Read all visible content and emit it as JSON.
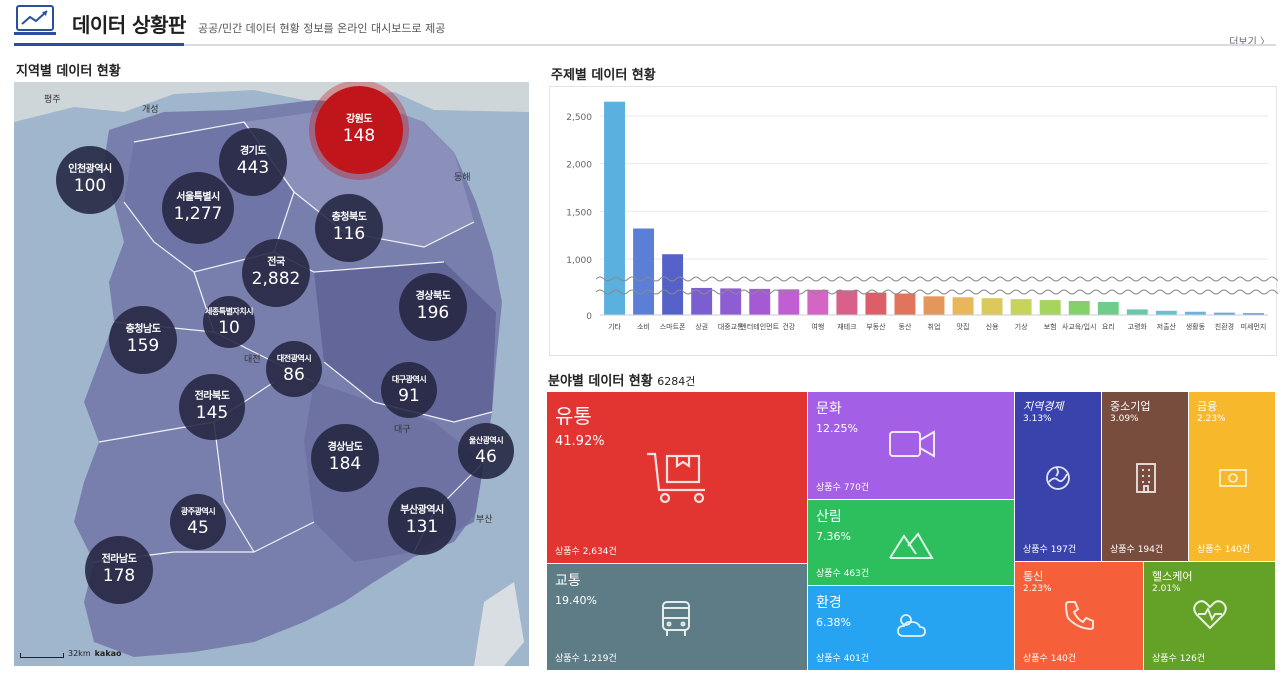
{
  "header": {
    "title": "데이터 상황판",
    "subtitle": "공공/민간 데이터 현황 정보를 온라인 대시보드로 제공",
    "more_label": "더보기 〉",
    "logo_icon": "trend-chart-icon"
  },
  "regional": {
    "title": "지역별 데이터 현황",
    "regions": [
      {
        "name": "강원도",
        "count": "148",
        "highlight": true
      },
      {
        "name": "경기도",
        "count": "443"
      },
      {
        "name": "인천광역시",
        "count": "100"
      },
      {
        "name": "서울특별시",
        "count": "1,277"
      },
      {
        "name": "충청북도",
        "count": "116"
      },
      {
        "name": "전국",
        "count": "2,882"
      },
      {
        "name": "경상북도",
        "count": "196"
      },
      {
        "name": "세종특별자치시",
        "count": "10"
      },
      {
        "name": "충청남도",
        "count": "159"
      },
      {
        "name": "대전광역시",
        "count": "86"
      },
      {
        "name": "대구광역시",
        "count": "91"
      },
      {
        "name": "전라북도",
        "count": "145"
      },
      {
        "name": "울산광역시",
        "count": "46"
      },
      {
        "name": "경상남도",
        "count": "184"
      },
      {
        "name": "광주광역시",
        "count": "45"
      },
      {
        "name": "부산광역시",
        "count": "131"
      },
      {
        "name": "전라남도",
        "count": "178"
      }
    ],
    "map_labels": [
      "개성",
      "평주",
      "동해",
      "대전",
      "대구",
      "부산"
    ],
    "scale_label": "32km",
    "map_provider": "kakao"
  },
  "subject": {
    "title": "주제별 데이터 현황",
    "chart_data": {
      "type": "bar",
      "categories": [
        "기타",
        "소비",
        "스마트폰",
        "상권",
        "대중교통",
        "엔터테인먼트",
        "건강",
        "여행",
        "재테크",
        "부동산",
        "동산",
        "취업",
        "맛집",
        "신용",
        "기상",
        "보험",
        "사교육/입시",
        "요리",
        "고령화",
        "저출산",
        "생활동",
        "친환경",
        "미세먼지"
      ],
      "values": [
        2650,
        1320,
        1050,
        290,
        285,
        280,
        275,
        270,
        265,
        240,
        230,
        200,
        190,
        180,
        170,
        160,
        150,
        140,
        60,
        45,
        35,
        25,
        20
      ],
      "colors": [
        "#5ab0de",
        "#5b7fd6",
        "#5560c9",
        "#7b5fd0",
        "#8e5dd3",
        "#a45ad4",
        "#c25ed3",
        "#d565c4",
        "#d8608a",
        "#dc5e69",
        "#e0755c",
        "#e3975a",
        "#e8b75b",
        "#dcc95c",
        "#c8d35c",
        "#a6d45e",
        "#84d16b",
        "#70cc8a",
        "#6cc6ad",
        "#6cbfcc",
        "#6cb4dc",
        "#6ca6dc",
        "#6c9ad8"
      ],
      "yticks": [
        "0",
        "1,000",
        "1,500",
        "2,000",
        "2,500"
      ],
      "xlabel": "",
      "ylabel": "",
      "axis_break": true
    }
  },
  "field": {
    "title": "분야별 데이터 현황",
    "total": "6284건",
    "tiles": [
      {
        "name": "유통",
        "pct": "41.92%",
        "count": "상품수 2,634건",
        "color": "#e23532",
        "icon": "cart-box-icon"
      },
      {
        "name": "교통",
        "pct": "19.40%",
        "count": "상품수 1,219건",
        "color": "#5d7c85",
        "icon": "bus-icon"
      },
      {
        "name": "문화",
        "pct": "12.25%",
        "count": "상품수 770건",
        "color": "#a35fe6",
        "icon": "video-camera-icon"
      },
      {
        "name": "산림",
        "pct": "7.36%",
        "count": "상품수 463건",
        "color": "#2dbf5e",
        "icon": "mountain-icon"
      },
      {
        "name": "환경",
        "pct": "6.38%",
        "count": "상품수 401건",
        "color": "#26a4f2",
        "icon": "weather-icon"
      },
      {
        "name": "지역경제",
        "pct": "3.13%",
        "count": "상품수 197건",
        "color": "#3a43ac",
        "icon": "globe-icon"
      },
      {
        "name": "중소기업",
        "pct": "3.09%",
        "count": "상품수 194건",
        "color": "#794d3e",
        "icon": "building-icon"
      },
      {
        "name": "금융",
        "pct": "2.23%",
        "count": "상품수 140건",
        "color": "#f7b92b",
        "icon": "money-icon"
      },
      {
        "name": "통신",
        "pct": "2.23%",
        "count": "상품수 140건",
        "color": "#f5603a",
        "icon": "phone-icon"
      },
      {
        "name": "헬스케어",
        "pct": "2.01%",
        "count": "상품수 126건",
        "color": "#64a127",
        "icon": "heart-pulse-icon"
      }
    ]
  }
}
